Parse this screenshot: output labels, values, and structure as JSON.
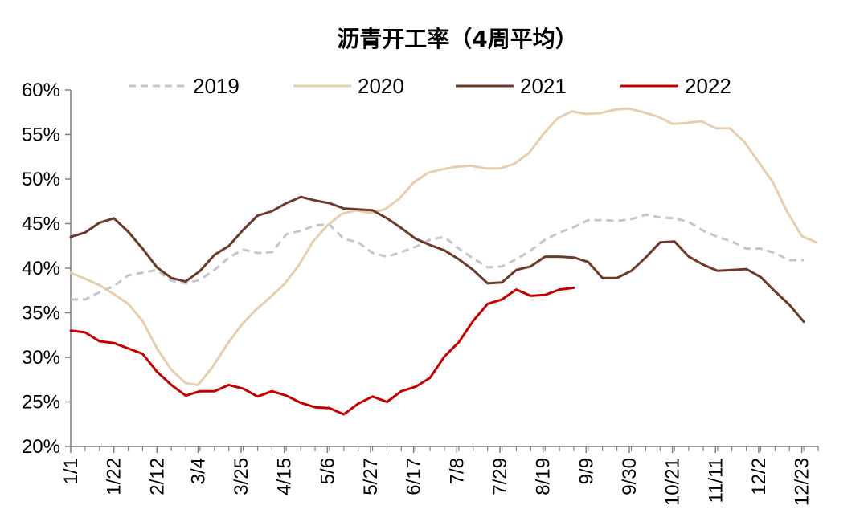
{
  "chart_data": {
    "type": "line",
    "title": "沥青开工率（4周平均）",
    "xlabel": "",
    "ylabel": "",
    "ylim": [
      20,
      60
    ],
    "y_ticks": [
      20,
      25,
      30,
      35,
      40,
      45,
      50,
      55,
      60
    ],
    "y_tick_labels": [
      "20%",
      "25%",
      "30%",
      "35%",
      "40%",
      "45%",
      "50%",
      "55%",
      "60%"
    ],
    "x_start": "1/1",
    "x_end": "12/31",
    "x_ticks": [
      "1/1",
      "1/22",
      "2/12",
      "3/4",
      "3/25",
      "4/15",
      "5/6",
      "5/27",
      "6/17",
      "7/8",
      "7/29",
      "8/19",
      "9/9",
      "9/30",
      "10/21",
      "11/11",
      "12/2",
      "12/23"
    ],
    "legend_position": "top",
    "grid": false,
    "series": [
      {
        "name": "2019",
        "color": "#c5c5d2",
        "dash": "dashed",
        "x": [
          "1/1",
          "1/8",
          "1/15",
          "1/22",
          "1/29",
          "2/5",
          "2/12",
          "2/19",
          "2/26",
          "3/5",
          "3/12",
          "3/19",
          "3/26",
          "4/2",
          "4/9",
          "4/16",
          "4/23",
          "4/30",
          "5/7",
          "5/14",
          "5/21",
          "5/28",
          "6/4",
          "6/11",
          "6/18",
          "6/25",
          "7/2",
          "7/9",
          "7/16",
          "7/23",
          "7/30",
          "8/6",
          "8/13",
          "8/20",
          "8/27",
          "9/3",
          "9/10",
          "9/17",
          "9/24",
          "10/1",
          "10/8",
          "10/15",
          "10/22",
          "10/29",
          "11/5",
          "11/12",
          "11/19",
          "11/26",
          "12/3",
          "12/10",
          "12/17",
          "12/24",
          "12/31"
        ],
        "values": [
          36.5,
          36.5,
          37.3,
          38.0,
          39.2,
          39.5,
          39.8,
          38.6,
          38.3,
          38.7,
          39.8,
          41.2,
          42.1,
          41.7,
          41.8,
          43.8,
          44.2,
          44.8,
          44.9,
          43.3,
          42.9,
          41.7,
          41.3,
          41.8,
          42.4,
          43.2,
          43.5,
          42.2,
          41.1,
          40.1,
          40.2,
          41.0,
          42.0,
          43.2,
          44.0,
          44.6,
          45.4,
          45.4,
          45.3,
          45.5,
          46.0,
          45.7,
          45.6,
          45.2,
          44.2,
          43.5,
          43.0,
          42.2,
          42.2,
          41.7,
          40.9,
          40.9,
          null
        ]
      },
      {
        "name": "2020",
        "color": "#e5cfb0",
        "dash": "solid",
        "x": [
          "1/1",
          "1/8",
          "1/15",
          "1/22",
          "1/29",
          "2/5",
          "2/12",
          "2/19",
          "2/26",
          "3/4",
          "3/11",
          "3/18",
          "3/25",
          "4/1",
          "4/8",
          "4/15",
          "4/22",
          "4/29",
          "5/6",
          "5/13",
          "5/20",
          "5/27",
          "6/3",
          "6/10",
          "6/17",
          "6/24",
          "7/1",
          "7/8",
          "7/15",
          "7/22",
          "7/29",
          "8/5",
          "8/12",
          "8/19",
          "8/26",
          "9/2",
          "9/9",
          "9/16",
          "9/23",
          "9/30",
          "10/7",
          "10/14",
          "10/21",
          "10/28",
          "11/4",
          "11/11",
          "11/18",
          "11/25",
          "12/2",
          "12/9",
          "12/16",
          "12/23",
          "12/30"
        ],
        "values": [
          39.5,
          38.8,
          38.1,
          37.1,
          36.0,
          34.1,
          31.0,
          28.6,
          27.1,
          26.9,
          28.9,
          31.4,
          33.6,
          35.3,
          36.7,
          38.2,
          40.3,
          43.0,
          44.8,
          46.1,
          46.5,
          46.2,
          46.6,
          47.8,
          49.6,
          50.7,
          51.1,
          51.4,
          51.5,
          51.2,
          51.2,
          51.7,
          52.9,
          55.0,
          56.8,
          57.6,
          57.3,
          57.4,
          57.8,
          57.9,
          57.5,
          57.0,
          56.2,
          56.3,
          56.5,
          55.7,
          55.7,
          54.2,
          51.9,
          49.6,
          46.3,
          43.6,
          42.9
        ]
      },
      {
        "name": "2021",
        "color": "#6b3a2a",
        "dash": "solid",
        "x": [
          "1/1",
          "1/8",
          "1/15",
          "1/22",
          "1/29",
          "2/5",
          "2/12",
          "2/19",
          "2/26",
          "3/5",
          "3/12",
          "3/19",
          "3/26",
          "4/2",
          "4/9",
          "4/16",
          "4/23",
          "4/30",
          "5/7",
          "5/14",
          "5/21",
          "5/28",
          "6/4",
          "6/11",
          "6/18",
          "6/25",
          "7/2",
          "7/9",
          "7/16",
          "7/23",
          "7/30",
          "8/6",
          "8/13",
          "8/20",
          "8/27",
          "9/3",
          "9/10",
          "9/17",
          "9/24",
          "10/1",
          "10/8",
          "10/15",
          "10/22",
          "10/29",
          "11/5",
          "11/12",
          "11/19",
          "11/26",
          "12/3",
          "12/10",
          "12/17",
          "12/24",
          "12/31"
        ],
        "values": [
          43.5,
          44.0,
          45.1,
          45.6,
          44.1,
          42.2,
          40.1,
          38.9,
          38.5,
          39.7,
          41.5,
          42.5,
          44.3,
          45.9,
          46.4,
          47.3,
          48.0,
          47.6,
          47.3,
          46.7,
          46.6,
          46.5,
          45.6,
          44.5,
          43.3,
          42.6,
          42.0,
          41.0,
          39.8,
          38.3,
          38.4,
          39.8,
          40.2,
          41.3,
          41.3,
          41.2,
          40.7,
          38.9,
          38.9,
          39.7,
          41.2,
          42.9,
          43.0,
          41.3,
          40.4,
          39.7,
          39.8,
          39.9,
          39.0,
          37.4,
          35.9,
          34.0,
          null
        ]
      },
      {
        "name": "2022",
        "color": "#c00000",
        "dash": "solid",
        "x": [
          "1/1",
          "1/8",
          "1/15",
          "1/22",
          "1/29",
          "2/5",
          "2/12",
          "2/19",
          "2/26",
          "3/5",
          "3/12",
          "3/19",
          "3/26",
          "4/2",
          "4/9",
          "4/16",
          "4/23",
          "4/30",
          "5/7",
          "5/14",
          "5/21",
          "5/28",
          "6/4",
          "6/11",
          "6/18",
          "6/25",
          "7/2",
          "7/9",
          "7/16",
          "7/23",
          "7/30",
          "8/6",
          "8/13",
          "8/20",
          "8/27",
          "9/3",
          "9/10"
        ],
        "values": [
          33.0,
          32.8,
          31.8,
          31.6,
          31.0,
          30.4,
          28.4,
          26.9,
          25.7,
          26.2,
          26.2,
          26.9,
          26.5,
          25.6,
          26.2,
          25.7,
          24.9,
          24.4,
          24.3,
          23.6,
          24.8,
          25.6,
          25.0,
          26.2,
          26.7,
          27.7,
          30.1,
          31.7,
          34.1,
          36.0,
          36.5,
          37.6,
          36.9,
          37.0,
          37.6,
          37.8,
          null
        ]
      }
    ]
  }
}
